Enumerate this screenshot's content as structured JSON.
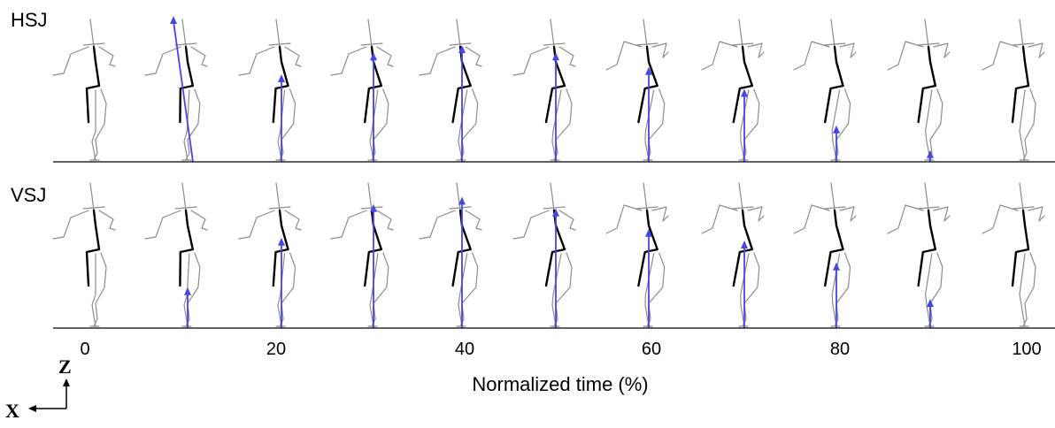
{
  "rows": [
    {
      "label": "HSJ",
      "arrows": [
        0,
        1.0,
        0.6,
        0.75,
        0.8,
        0.75,
        0.65,
        0.5,
        0.25,
        0.08,
        0
      ]
    },
    {
      "label": "VSJ",
      "arrows": [
        0,
        0.28,
        0.62,
        0.85,
        0.9,
        0.82,
        0.68,
        0.6,
        0.45,
        0.2,
        0
      ]
    }
  ],
  "x_axis": {
    "label": "Normalized time (%)",
    "ticks": [
      "0",
      "20",
      "40",
      "60",
      "80",
      "100"
    ]
  },
  "axis_indicator": {
    "z": "Z",
    "x": "X"
  },
  "colors": {
    "body": "#8c8c8c",
    "trunk": "#000000",
    "arrow": "#4646e6",
    "ground": "#000000"
  }
}
